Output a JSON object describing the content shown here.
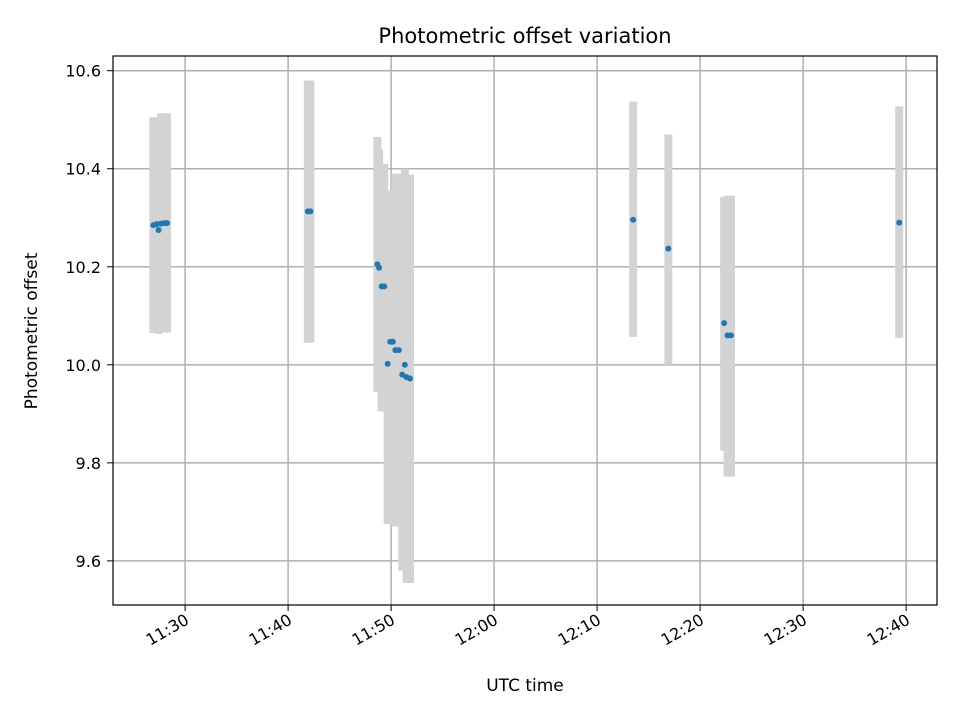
{
  "chart_data": {
    "type": "scatter",
    "title": "Photometric offset variation",
    "xlabel": "UTC time",
    "ylabel": "Photometric offset",
    "x_axis_type": "time",
    "xlim": [
      "11:23",
      "12:43"
    ],
    "ylim": [
      9.51,
      10.63
    ],
    "xticks": [
      "11:30",
      "11:40",
      "11:50",
      "12:00",
      "12:10",
      "12:20",
      "12:30",
      "12:40"
    ],
    "yticks": [
      9.6,
      9.8,
      10.0,
      10.2,
      10.4,
      10.6
    ],
    "ytick_labels": [
      "9.6",
      "9.8",
      "10.0",
      "10.2",
      "10.4",
      "10.6"
    ],
    "grid": true,
    "colors": {
      "points": "#1f77b4",
      "error_bars": "#d3d3d3",
      "grid": "#b0b0b0"
    },
    "points": [
      {
        "t": "11:26:55",
        "y": 10.285,
        "ylo": 10.065,
        "yhi": 10.505
      },
      {
        "t": "11:27:15",
        "y": 10.287,
        "ylo": 10.068,
        "yhi": 10.505
      },
      {
        "t": "11:27:25",
        "y": 10.275,
        "ylo": 10.063,
        "yhi": 10.505
      },
      {
        "t": "11:27:40",
        "y": 10.288,
        "ylo": 10.066,
        "yhi": 10.513
      },
      {
        "t": "11:28:00",
        "y": 10.289,
        "ylo": 10.066,
        "yhi": 10.513
      },
      {
        "t": "11:28:15",
        "y": 10.289,
        "ylo": 10.066,
        "yhi": 10.513
      },
      {
        "t": "11:41:55",
        "y": 10.313,
        "ylo": 10.045,
        "yhi": 10.58
      },
      {
        "t": "11:42:10",
        "y": 10.313,
        "ylo": 10.045,
        "yhi": 10.58
      },
      {
        "t": "11:48:40",
        "y": 10.205,
        "ylo": 9.945,
        "yhi": 10.465
      },
      {
        "t": "11:48:50",
        "y": 10.198,
        "ylo": 9.96,
        "yhi": 10.44
      },
      {
        "t": "11:49:05",
        "y": 10.16,
        "ylo": 9.905,
        "yhi": 10.41
      },
      {
        "t": "11:49:20",
        "y": 10.16,
        "ylo": 9.905,
        "yhi": 10.41
      },
      {
        "t": "11:49:40",
        "y": 10.002,
        "ylo": 9.675,
        "yhi": 10.33
      },
      {
        "t": "11:49:55",
        "y": 10.047,
        "ylo": 9.74,
        "yhi": 10.355
      },
      {
        "t": "11:50:10",
        "y": 10.047,
        "ylo": 9.74,
        "yhi": 10.355
      },
      {
        "t": "11:50:25",
        "y": 10.03,
        "ylo": 9.67,
        "yhi": 10.39
      },
      {
        "t": "11:50:45",
        "y": 10.03,
        "ylo": 9.67,
        "yhi": 10.39
      },
      {
        "t": "11:51:05",
        "y": 9.98,
        "ylo": 9.58,
        "yhi": 10.38
      },
      {
        "t": "11:51:20",
        "y": 10.0,
        "ylo": 9.6,
        "yhi": 10.4
      },
      {
        "t": "11:51:30",
        "y": 9.975,
        "ylo": 9.555,
        "yhi": 10.388
      },
      {
        "t": "11:51:50",
        "y": 9.972,
        "ylo": 9.555,
        "yhi": 10.388
      },
      {
        "t": "12:13:30",
        "y": 10.296,
        "ylo": 10.057,
        "yhi": 10.537
      },
      {
        "t": "12:16:55",
        "y": 10.237,
        "ylo": 10.0,
        "yhi": 10.47
      },
      {
        "t": "12:22:20",
        "y": 10.085,
        "ylo": 9.825,
        "yhi": 10.342
      },
      {
        "t": "12:22:40",
        "y": 10.06,
        "ylo": 9.772,
        "yhi": 10.345
      },
      {
        "t": "12:23:00",
        "y": 10.06,
        "ylo": 9.772,
        "yhi": 10.345
      },
      {
        "t": "12:39:20",
        "y": 10.29,
        "ylo": 10.055,
        "yhi": 10.527
      }
    ]
  }
}
